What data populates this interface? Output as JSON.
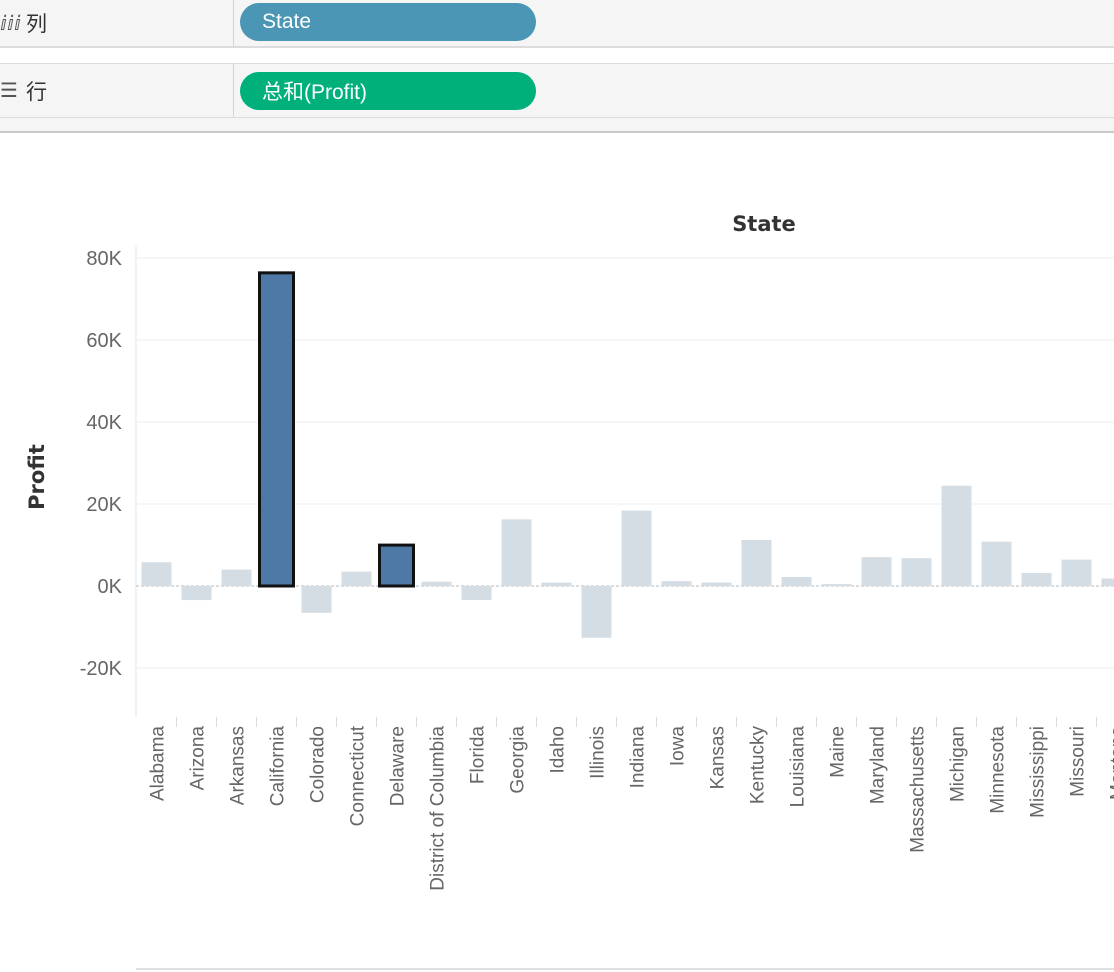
{
  "shelves": {
    "columns": {
      "label": "列",
      "icon": "columns-icon",
      "pill": "State",
      "pill_color": "#4a96b4"
    },
    "rows": {
      "label": "行",
      "icon": "rows-icon",
      "pill": "总和(Profit)",
      "pill_color": "#00b07a"
    }
  },
  "chart_data": {
    "type": "bar",
    "title": "State",
    "ylabel": "Profit",
    "xlabel": "",
    "ylim": [
      -31000,
      82000
    ],
    "yticks": [
      -20000,
      0,
      20000,
      40000,
      60000,
      80000
    ],
    "ytick_labels": [
      "-20K",
      "0K",
      "20K",
      "40K",
      "60K",
      "80K"
    ],
    "grid": true,
    "categories": [
      "Alabama",
      "Arizona",
      "Arkansas",
      "California",
      "Colorado",
      "Connecticut",
      "Delaware",
      "District of Columbia",
      "Florida",
      "Georgia",
      "Idaho",
      "Illinois",
      "Indiana",
      "Iowa",
      "Kansas",
      "Kentucky",
      "Louisiana",
      "Maine",
      "Maryland",
      "Massachusetts",
      "Michigan",
      "Minnesota",
      "Mississippi",
      "Missouri",
      "Montana"
    ],
    "values": [
      5787,
      -3428,
      4009,
      76381,
      -6528,
      3511,
      9977,
      1060,
      -3400,
      16250,
      827,
      -12608,
      18383,
      1184,
      837,
      11200,
      2196,
      454,
      7031,
      6786,
      24463,
      10823,
      3172,
      6436,
      1833
    ],
    "highlighted": [
      "California",
      "Delaware"
    ],
    "colors": {
      "highlight": "#4e79a7",
      "dimmed": "#d4dce4",
      "highlight_stroke": "#111111"
    }
  }
}
